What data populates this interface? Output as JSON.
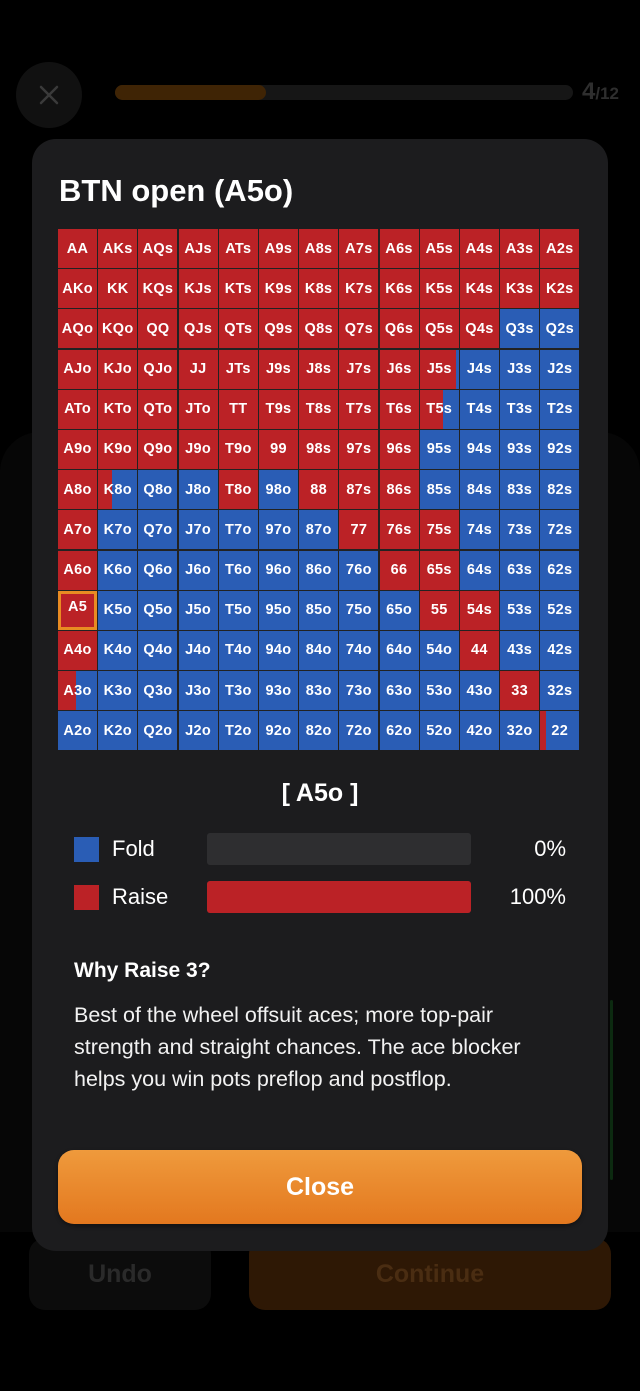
{
  "background": {
    "progress": {
      "fraction": 0.33,
      "step_current": "4",
      "step_total": "/12"
    },
    "undo_label": "Undo",
    "continue_label": "Continue"
  },
  "modal": {
    "title": "BTN open (A5o)",
    "selected_hand": "[ A5o ]",
    "legend": [
      {
        "name": "Fold",
        "percent_label": "0%",
        "fraction": 0,
        "color": "#2a5db5"
      },
      {
        "name": "Raise",
        "percent_label": "100%",
        "fraction": 1,
        "color": "#bb2226"
      }
    ],
    "why_title": "Why Raise 3?",
    "why_body": "Best of the wheel offsuit aces; more top-pair strength and straight chances. The ace blocker helps you win pots preflop and postflop.",
    "close_label": "Close"
  },
  "colors": {
    "raise": "#bb2226",
    "fold": "#2a5db5",
    "highlight": "#e98b22",
    "accent": "#e3781f"
  },
  "range_grid": {
    "rows": [
      [
        {
          "h": "AA",
          "a": "R"
        },
        {
          "h": "AKs",
          "a": "R"
        },
        {
          "h": "AQs",
          "a": "R"
        },
        {
          "h": "AJs",
          "a": "R"
        },
        {
          "h": "ATs",
          "a": "R"
        },
        {
          "h": "A9s",
          "a": "R"
        },
        {
          "h": "A8s",
          "a": "R"
        },
        {
          "h": "A7s",
          "a": "R"
        },
        {
          "h": "A6s",
          "a": "R"
        },
        {
          "h": "A5s",
          "a": "R"
        },
        {
          "h": "A4s",
          "a": "R"
        },
        {
          "h": "A3s",
          "a": "R"
        },
        {
          "h": "A2s",
          "a": "R"
        }
      ],
      [
        {
          "h": "AKo",
          "a": "R"
        },
        {
          "h": "KK",
          "a": "R"
        },
        {
          "h": "KQs",
          "a": "R"
        },
        {
          "h": "KJs",
          "a": "R"
        },
        {
          "h": "KTs",
          "a": "R"
        },
        {
          "h": "K9s",
          "a": "R"
        },
        {
          "h": "K8s",
          "a": "R"
        },
        {
          "h": "K7s",
          "a": "R"
        },
        {
          "h": "K6s",
          "a": "R"
        },
        {
          "h": "K5s",
          "a": "R"
        },
        {
          "h": "K4s",
          "a": "R"
        },
        {
          "h": "K3s",
          "a": "R"
        },
        {
          "h": "K2s",
          "a": "R"
        }
      ],
      [
        {
          "h": "AQo",
          "a": "R"
        },
        {
          "h": "KQo",
          "a": "R"
        },
        {
          "h": "QQ",
          "a": "R"
        },
        {
          "h": "QJs",
          "a": "R"
        },
        {
          "h": "QTs",
          "a": "R"
        },
        {
          "h": "Q9s",
          "a": "R"
        },
        {
          "h": "Q8s",
          "a": "R"
        },
        {
          "h": "Q7s",
          "a": "R"
        },
        {
          "h": "Q6s",
          "a": "R"
        },
        {
          "h": "Q5s",
          "a": "R"
        },
        {
          "h": "Q4s",
          "a": "R"
        },
        {
          "h": "Q3s",
          "a": "F"
        },
        {
          "h": "Q2s",
          "a": "F"
        }
      ],
      [
        {
          "h": "AJo",
          "a": "R"
        },
        {
          "h": "KJo",
          "a": "R"
        },
        {
          "h": "QJo",
          "a": "R"
        },
        {
          "h": "JJ",
          "a": "R"
        },
        {
          "h": "JTs",
          "a": "R"
        },
        {
          "h": "J9s",
          "a": "R"
        },
        {
          "h": "J8s",
          "a": "R"
        },
        {
          "h": "J7s",
          "a": "R"
        },
        {
          "h": "J6s",
          "a": "R"
        },
        {
          "h": "J5s",
          "a": "R",
          "raise": 0.93
        },
        {
          "h": "J4s",
          "a": "F"
        },
        {
          "h": "J3s",
          "a": "F"
        },
        {
          "h": "J2s",
          "a": "F"
        }
      ],
      [
        {
          "h": "ATo",
          "a": "R"
        },
        {
          "h": "KTo",
          "a": "R"
        },
        {
          "h": "QTo",
          "a": "R"
        },
        {
          "h": "JTo",
          "a": "R"
        },
        {
          "h": "TT",
          "a": "R"
        },
        {
          "h": "T9s",
          "a": "R"
        },
        {
          "h": "T8s",
          "a": "R"
        },
        {
          "h": "T7s",
          "a": "R"
        },
        {
          "h": "T6s",
          "a": "R"
        },
        {
          "h": "T5s",
          "a": "R",
          "raise": 0.6
        },
        {
          "h": "T4s",
          "a": "F"
        },
        {
          "h": "T3s",
          "a": "F"
        },
        {
          "h": "T2s",
          "a": "F"
        }
      ],
      [
        {
          "h": "A9o",
          "a": "R"
        },
        {
          "h": "K9o",
          "a": "R"
        },
        {
          "h": "Q9o",
          "a": "R"
        },
        {
          "h": "J9o",
          "a": "R"
        },
        {
          "h": "T9o",
          "a": "R"
        },
        {
          "h": "99",
          "a": "R"
        },
        {
          "h": "98s",
          "a": "R"
        },
        {
          "h": "97s",
          "a": "R"
        },
        {
          "h": "96s",
          "a": "R"
        },
        {
          "h": "95s",
          "a": "F"
        },
        {
          "h": "94s",
          "a": "F"
        },
        {
          "h": "93s",
          "a": "F"
        },
        {
          "h": "92s",
          "a": "F"
        }
      ],
      [
        {
          "h": "A8o",
          "a": "R"
        },
        {
          "h": "K8o",
          "a": "F",
          "raise": 0.35
        },
        {
          "h": "Q8o",
          "a": "F"
        },
        {
          "h": "J8o",
          "a": "F"
        },
        {
          "h": "T8o",
          "a": "R"
        },
        {
          "h": "98o",
          "a": "F"
        },
        {
          "h": "88",
          "a": "R"
        },
        {
          "h": "87s",
          "a": "R"
        },
        {
          "h": "86s",
          "a": "R"
        },
        {
          "h": "85s",
          "a": "F"
        },
        {
          "h": "84s",
          "a": "F"
        },
        {
          "h": "83s",
          "a": "F"
        },
        {
          "h": "82s",
          "a": "F"
        }
      ],
      [
        {
          "h": "A7o",
          "a": "R"
        },
        {
          "h": "K7o",
          "a": "F"
        },
        {
          "h": "Q7o",
          "a": "F"
        },
        {
          "h": "J7o",
          "a": "F"
        },
        {
          "h": "T7o",
          "a": "F"
        },
        {
          "h": "97o",
          "a": "F"
        },
        {
          "h": "87o",
          "a": "F"
        },
        {
          "h": "77",
          "a": "R"
        },
        {
          "h": "76s",
          "a": "R"
        },
        {
          "h": "75s",
          "a": "R"
        },
        {
          "h": "74s",
          "a": "F"
        },
        {
          "h": "73s",
          "a": "F"
        },
        {
          "h": "72s",
          "a": "F"
        }
      ],
      [
        {
          "h": "A6o",
          "a": "R"
        },
        {
          "h": "K6o",
          "a": "F"
        },
        {
          "h": "Q6o",
          "a": "F"
        },
        {
          "h": "J6o",
          "a": "F"
        },
        {
          "h": "T6o",
          "a": "F"
        },
        {
          "h": "96o",
          "a": "F"
        },
        {
          "h": "86o",
          "a": "F"
        },
        {
          "h": "76o",
          "a": "F"
        },
        {
          "h": "66",
          "a": "R"
        },
        {
          "h": "65s",
          "a": "R"
        },
        {
          "h": "64s",
          "a": "F"
        },
        {
          "h": "63s",
          "a": "F"
        },
        {
          "h": "62s",
          "a": "F"
        }
      ],
      [
        {
          "h": "A5",
          "a": "R",
          "sel": true
        },
        {
          "h": "K5o",
          "a": "F"
        },
        {
          "h": "Q5o",
          "a": "F"
        },
        {
          "h": "J5o",
          "a": "F"
        },
        {
          "h": "T5o",
          "a": "F"
        },
        {
          "h": "95o",
          "a": "F"
        },
        {
          "h": "85o",
          "a": "F"
        },
        {
          "h": "75o",
          "a": "F"
        },
        {
          "h": "65o",
          "a": "F"
        },
        {
          "h": "55",
          "a": "R"
        },
        {
          "h": "54s",
          "a": "R"
        },
        {
          "h": "53s",
          "a": "F"
        },
        {
          "h": "52s",
          "a": "F"
        }
      ],
      [
        {
          "h": "A4o",
          "a": "R"
        },
        {
          "h": "K4o",
          "a": "F"
        },
        {
          "h": "Q4o",
          "a": "F"
        },
        {
          "h": "J4o",
          "a": "F"
        },
        {
          "h": "T4o",
          "a": "F"
        },
        {
          "h": "94o",
          "a": "F"
        },
        {
          "h": "84o",
          "a": "F"
        },
        {
          "h": "74o",
          "a": "F"
        },
        {
          "h": "64o",
          "a": "F"
        },
        {
          "h": "54o",
          "a": "F"
        },
        {
          "h": "44",
          "a": "R"
        },
        {
          "h": "43s",
          "a": "F"
        },
        {
          "h": "42s",
          "a": "F"
        }
      ],
      [
        {
          "h": "A3o",
          "a": "F",
          "raise": 0.45
        },
        {
          "h": "K3o",
          "a": "F"
        },
        {
          "h": "Q3o",
          "a": "F"
        },
        {
          "h": "J3o",
          "a": "F"
        },
        {
          "h": "T3o",
          "a": "F"
        },
        {
          "h": "93o",
          "a": "F"
        },
        {
          "h": "83o",
          "a": "F"
        },
        {
          "h": "73o",
          "a": "F"
        },
        {
          "h": "63o",
          "a": "F"
        },
        {
          "h": "53o",
          "a": "F"
        },
        {
          "h": "43o",
          "a": "F"
        },
        {
          "h": "33",
          "a": "R"
        },
        {
          "h": "32s",
          "a": "F"
        }
      ],
      [
        {
          "h": "A2o",
          "a": "F"
        },
        {
          "h": "K2o",
          "a": "F"
        },
        {
          "h": "Q2o",
          "a": "F"
        },
        {
          "h": "J2o",
          "a": "F"
        },
        {
          "h": "T2o",
          "a": "F"
        },
        {
          "h": "92o",
          "a": "F"
        },
        {
          "h": "82o",
          "a": "F"
        },
        {
          "h": "72o",
          "a": "F"
        },
        {
          "h": "62o",
          "a": "F"
        },
        {
          "h": "52o",
          "a": "F"
        },
        {
          "h": "42o",
          "a": "F"
        },
        {
          "h": "32o",
          "a": "F"
        },
        {
          "h": "22",
          "a": "F",
          "raise": 0.15
        }
      ]
    ]
  }
}
